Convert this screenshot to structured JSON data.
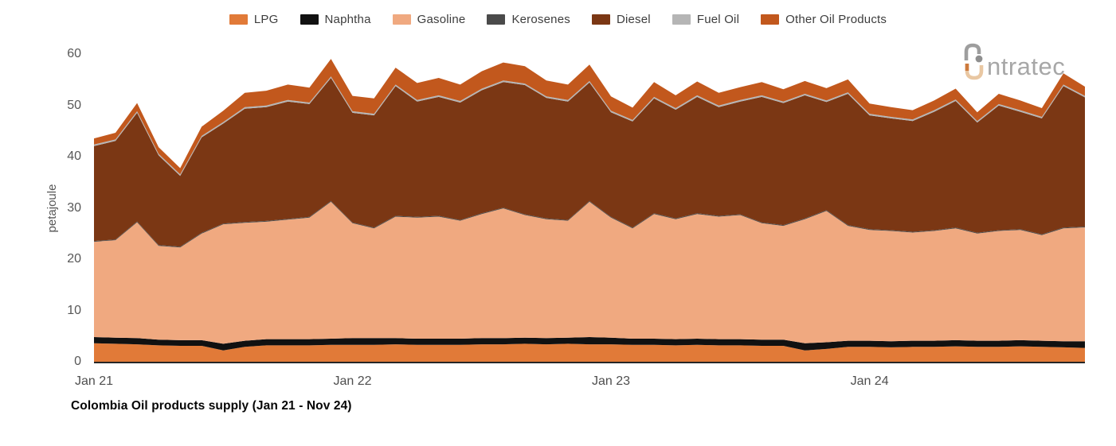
{
  "title": "Colombia Oil products supply (Jan 21 - Nov 24)",
  "logo": {
    "text": "ntratec"
  },
  "y_axis": {
    "label": "petajoule",
    "ticks": [
      0,
      10,
      20,
      30,
      40,
      50,
      60
    ]
  },
  "x_axis": {
    "tick_labels": [
      "Jan 21",
      "Jan 22",
      "Jan 23",
      "Jan 24"
    ],
    "tick_month_indices": [
      0,
      12,
      24,
      36
    ]
  },
  "chart_data": {
    "type": "area",
    "stacked": true,
    "title": "Colombia Oil products supply (Jan 21 - Nov 24)",
    "ylabel": "petajoule",
    "unit": "petajoule",
    "ylim": [
      0,
      60
    ],
    "grid": false,
    "legend_position": "top",
    "x": [
      "Jan 21",
      "Feb 21",
      "Mar 21",
      "Apr 21",
      "May 21",
      "Jun 21",
      "Jul 21",
      "Aug 21",
      "Sep 21",
      "Oct 21",
      "Nov 21",
      "Dec 21",
      "Jan 22",
      "Feb 22",
      "Mar 22",
      "Apr 22",
      "May 22",
      "Jun 22",
      "Jul 22",
      "Aug 22",
      "Sep 22",
      "Oct 22",
      "Nov 22",
      "Dec 22",
      "Jan 23",
      "Feb 23",
      "Mar 23",
      "Apr 23",
      "May 23",
      "Jun 23",
      "Jul 23",
      "Aug 23",
      "Sep 23",
      "Oct 23",
      "Nov 23",
      "Dec 23",
      "Jan 24",
      "Feb 24",
      "Mar 24",
      "Apr 24",
      "May 24",
      "Jun 24",
      "Jul 24",
      "Aug 24",
      "Sep 24",
      "Oct 24",
      "Nov 24"
    ],
    "series": [
      {
        "name": "LPG",
        "color": "#E17A38",
        "values": [
          3.6,
          3.5,
          3.4,
          3.2,
          3.1,
          3.1,
          2.2,
          2.9,
          3.2,
          3.2,
          3.2,
          3.3,
          3.3,
          3.3,
          3.4,
          3.3,
          3.3,
          3.3,
          3.4,
          3.4,
          3.5,
          3.4,
          3.5,
          3.4,
          3.4,
          3.3,
          3.3,
          3.2,
          3.3,
          3.2,
          3.2,
          3.1,
          3.1,
          2.2,
          2.5,
          2.9,
          2.9,
          2.8,
          2.9,
          2.9,
          3.0,
          2.9,
          2.9,
          3.0,
          2.9,
          2.8,
          2.7
        ]
      },
      {
        "name": "Naphtha",
        "color": "#111111",
        "values": [
          1.2,
          1.2,
          1.2,
          1.1,
          1.1,
          1.1,
          1.3,
          1.2,
          1.2,
          1.2,
          1.2,
          1.2,
          1.3,
          1.3,
          1.2,
          1.2,
          1.2,
          1.2,
          1.2,
          1.2,
          1.2,
          1.2,
          1.2,
          1.4,
          1.3,
          1.2,
          1.2,
          1.2,
          1.2,
          1.2,
          1.2,
          1.2,
          1.2,
          1.4,
          1.3,
          1.2,
          1.2,
          1.2,
          1.2,
          1.2,
          1.2,
          1.2,
          1.2,
          1.2,
          1.2,
          1.2,
          1.3
        ]
      },
      {
        "name": "Gasoline",
        "color": "#F0A980",
        "values": [
          18.6,
          19.0,
          22.6,
          18.3,
          18.1,
          20.8,
          23.3,
          23.0,
          22.9,
          23.3,
          23.7,
          26.7,
          22.4,
          21.4,
          23.7,
          23.6,
          23.8,
          23.0,
          24.2,
          25.3,
          23.9,
          23.2,
          22.8,
          26.4,
          23.4,
          21.5,
          24.3,
          23.4,
          24.3,
          23.9,
          24.2,
          22.7,
          22.2,
          24.2,
          25.6,
          22.4,
          21.6,
          21.5,
          21.1,
          21.4,
          21.8,
          20.9,
          21.4,
          21.5,
          20.6,
          22.0,
          22.2
        ]
      },
      {
        "name": "Kerosenes",
        "color": "#4A4A4A",
        "values": [
          0.15,
          0.15,
          0.15,
          0.15,
          0.15,
          0.15,
          0.15,
          0.15,
          0.15,
          0.15,
          0.15,
          0.15,
          0.15,
          0.15,
          0.15,
          0.15,
          0.15,
          0.15,
          0.15,
          0.15,
          0.15,
          0.15,
          0.15,
          0.15,
          0.15,
          0.15,
          0.15,
          0.15,
          0.15,
          0.15,
          0.15,
          0.15,
          0.15,
          0.15,
          0.15,
          0.15,
          0.15,
          0.15,
          0.15,
          0.15,
          0.15,
          0.15,
          0.15,
          0.15,
          0.15,
          0.15,
          0.15
        ]
      },
      {
        "name": "Diesel",
        "color": "#7B3714",
        "values": [
          18.5,
          19.2,
          21.2,
          17.5,
          13.8,
          18.6,
          19.5,
          22.1,
          22.2,
          22.9,
          22.0,
          24.0,
          21.4,
          21.9,
          25.3,
          22.5,
          23.2,
          22.9,
          24.0,
          24.5,
          25.2,
          23.5,
          23.1,
          23.1,
          20.4,
          20.7,
          22.4,
          21.2,
          22.7,
          21.2,
          22.0,
          24.5,
          23.8,
          24.0,
          21.1,
          25.6,
          22.2,
          21.8,
          21.6,
          23.1,
          24.7,
          21.5,
          24.3,
          22.9,
          22.6,
          27.6,
          25.2
        ]
      },
      {
        "name": "Fuel Oil",
        "color": "#B5B5B5",
        "values": [
          0.3,
          0.3,
          0.3,
          0.3,
          0.3,
          0.3,
          0.3,
          0.3,
          0.3,
          0.3,
          0.3,
          0.3,
          0.3,
          0.3,
          0.3,
          0.3,
          0.3,
          0.3,
          0.3,
          0.3,
          0.3,
          0.3,
          0.3,
          0.3,
          0.3,
          0.3,
          0.3,
          0.3,
          0.3,
          0.3,
          0.3,
          0.3,
          0.3,
          0.3,
          0.3,
          0.3,
          0.3,
          0.3,
          0.3,
          0.3,
          0.3,
          0.3,
          0.3,
          0.3,
          0.3,
          0.3,
          0.3
        ]
      },
      {
        "name": "Other Oil Products",
        "color": "#C2581D",
        "values": [
          1.2,
          1.3,
          1.6,
          1.3,
          1.2,
          1.8,
          2.2,
          2.8,
          2.9,
          3.0,
          2.9,
          3.4,
          3.0,
          3.0,
          3.3,
          3.3,
          3.4,
          3.2,
          3.4,
          3.5,
          3.4,
          3.1,
          3.0,
          3.2,
          2.8,
          2.4,
          2.9,
          2.5,
          2.7,
          2.5,
          2.5,
          2.6,
          2.4,
          2.5,
          2.4,
          2.5,
          2.0,
          1.9,
          1.8,
          1.9,
          2.1,
          1.7,
          2.0,
          1.9,
          1.7,
          2.2,
          1.8
        ]
      }
    ]
  }
}
